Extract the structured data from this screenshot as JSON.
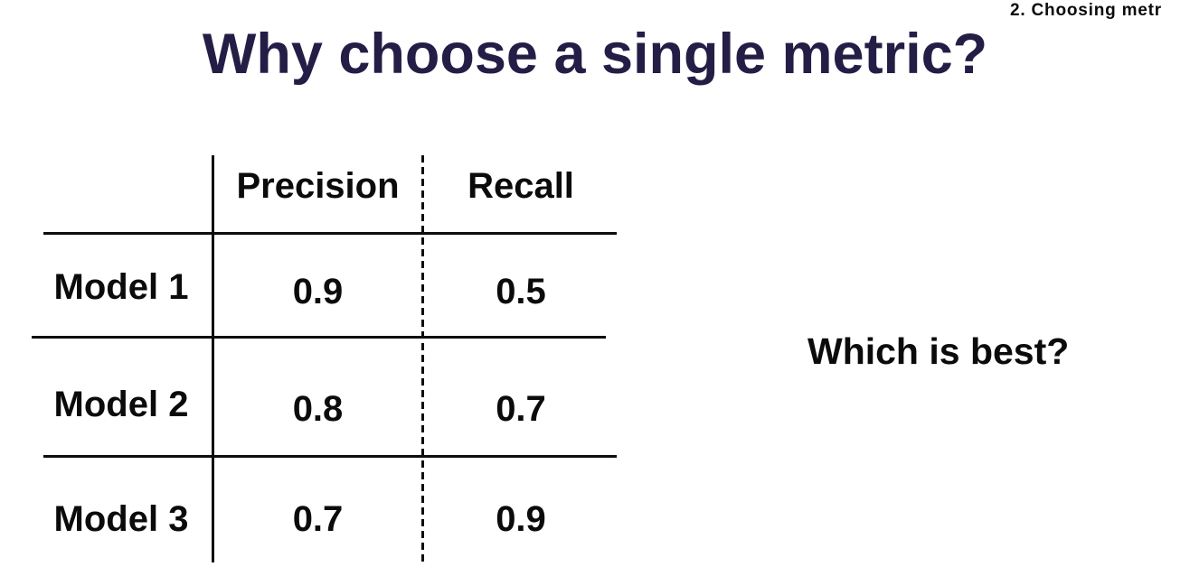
{
  "page": {
    "corner_note": "2. Choosing metr",
    "title": "Why choose a single metric?",
    "question": "Which is best?"
  },
  "colors": {
    "background": "#ffffff",
    "title_text": "#241e46",
    "body_text": "#0b0b0b",
    "table_lines": "#0d0d0d"
  },
  "table": {
    "columns": [
      "Precision",
      "Recall"
    ],
    "rows": [
      {
        "label": "Model 1",
        "precision": "0.9",
        "recall": "0.5"
      },
      {
        "label": "Model 2",
        "precision": "0.8",
        "recall": "0.7"
      },
      {
        "label": "Model 3",
        "precision": "0.7",
        "recall": "0.9"
      }
    ],
    "divider_styles": {
      "label_divider": "solid",
      "metric_divider": "dashed"
    }
  }
}
